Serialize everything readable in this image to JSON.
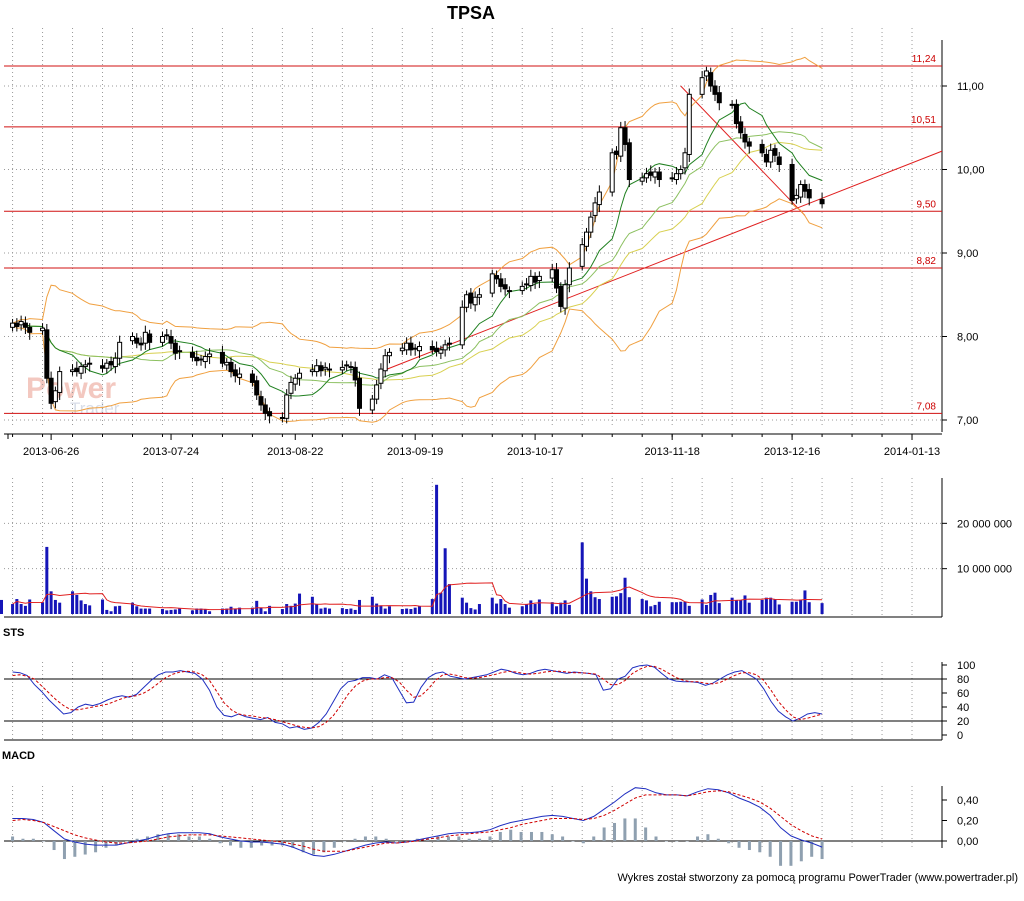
{
  "chart_data": [
    {
      "type": "candlestick",
      "title": "TPSA",
      "y_ticks": [
        "7,00",
        "8,00",
        "9,00",
        "10,00",
        "11,00"
      ],
      "ylim": [
        7.0,
        11.4
      ],
      "x_ticks": [
        "2013-06-26",
        "2013-07-24",
        "2013-08-22",
        "2013-09-19",
        "2013-10-17",
        "2013-11-18",
        "2013-12-16",
        "2014-01-13"
      ],
      "x_start_date": "2013-06-15",
      "x_end_date": "2014-01-20",
      "levels": [
        {
          "label": "11,24",
          "value": 11.24
        },
        {
          "label": "10,51",
          "value": 10.51
        },
        {
          "label": "9,50",
          "value": 9.5
        },
        {
          "label": "8,82",
          "value": 8.82
        },
        {
          "label": "7,08",
          "value": 7.08
        }
      ],
      "trendlines": [
        {
          "from": [
            "2013-09-12",
            7.6
          ],
          "to": [
            "2014-01-20",
            10.22
          ]
        },
        {
          "from": [
            "2013-11-20",
            11.0
          ],
          "to": [
            "2013-12-19",
            9.45
          ]
        }
      ],
      "bollinger": "upper/lower bands",
      "moving_averages": [
        "green",
        "yellow-green"
      ],
      "watermark": [
        "Power",
        "Trader"
      ],
      "grid": true,
      "series": [
        {
          "close": [
            8.16,
            8.12,
            8.18,
            8.11,
            8.05,
            8.1,
            7.5,
            7.2,
            7.35,
            7.58,
            7.6,
            7.58,
            7.64,
            7.66,
            7.67,
            7.62,
            7.68,
            7.66,
            7.74,
            7.93,
            8.0,
            7.92,
            7.9,
            8.05,
            7.93,
            8.0,
            8.02,
            7.92,
            7.8,
            7.83,
            7.75,
            7.71,
            7.72,
            7.76,
            7.79,
            7.68,
            7.69,
            7.58,
            7.53,
            7.55,
            7.45,
            7.3,
            7.18,
            7.08,
            7.05,
            7.02,
            7.3,
            7.45,
            7.5,
            7.56,
            7.6,
            7.65,
            7.59,
            7.63,
            7.6,
            7.63,
            7.66,
            7.63,
            7.48,
            7.14,
            7.25,
            7.42,
            7.61,
            7.77,
            7.81,
            7.86,
            7.92,
            7.84,
            7.85,
            7.88,
            7.84,
            7.82,
            7.84,
            7.9,
            7.92,
            8.35,
            8.5,
            8.4,
            8.47,
            8.5,
            8.75,
            8.69,
            8.6,
            8.57,
            8.55,
            8.6,
            8.63,
            8.72,
            8.65,
            8.72,
            8.8,
            8.58,
            8.36,
            8.62,
            8.82,
            9.1,
            9.25,
            9.43,
            9.6,
            9.73,
            10.2,
            10.18,
            10.5,
            10.3,
            9.88,
            9.9,
            9.95,
            9.93,
            9.97,
            9.88,
            9.9,
            9.95,
            10.0,
            10.2,
            10.9,
            11.1,
            11.18,
            11.0,
            10.9,
            10.8,
            10.78,
            10.55,
            10.44,
            10.33,
            10.28,
            10.2,
            10.09,
            10.23,
            10.17,
            10.06,
            9.63,
            9.69,
            9.82,
            9.74,
            9.66,
            9.59
          ]
        }
      ]
    },
    {
      "type": "bar",
      "ylabel": "",
      "y_ticks": [
        "10 000 000",
        "20 000 000"
      ],
      "ylim": [
        0,
        30000000
      ],
      "moving_average": "red",
      "series": [
        {
          "values": [
            2200000,
            3300000,
            2200000,
            1800000,
            3200000,
            2600000,
            14800000,
            5000000,
            3100000,
            2500000,
            5000000,
            4200000,
            3000000,
            2200000,
            1900000,
            3200000,
            900000,
            600000,
            1700000,
            1800000,
            2500000,
            1700000,
            1200000,
            1200000,
            1200000,
            1100000,
            800000,
            900000,
            1000000,
            1200000,
            800000,
            1200000,
            1200000,
            1000000,
            600000,
            1200000,
            1200000,
            1600000,
            1200000,
            1400000,
            1400000,
            2900000,
            1400000,
            600000,
            1800000,
            1100000,
            2200000,
            1800000,
            2300000,
            4500000,
            3800000,
            2200000,
            1200000,
            1400000,
            1200000,
            1300000,
            1100000,
            1200000,
            900000,
            3100000,
            3800000,
            2300000,
            1900000,
            1200000,
            1700000,
            1100000,
            1200000,
            1100000,
            1400000,
            1700000,
            3300000,
            28500000,
            4700000,
            14500000,
            6600000,
            3600000,
            2500000,
            1300000,
            1000000,
            2200000,
            3600000,
            2300000,
            3300000,
            2200000,
            1400000,
            1700000,
            2100000,
            3000000,
            2200000,
            3200000,
            2600000,
            1700000,
            2500000,
            3000000,
            2000000,
            15800000,
            7800000,
            5000000,
            3700000,
            3300000,
            3800000,
            3900000,
            4600000,
            8000000,
            3700000,
            3300000,
            3000000,
            1700000,
            2000000,
            2700000,
            2600000,
            2600000,
            2700000,
            2700000,
            1800000,
            3200000,
            2000000,
            4200000,
            4700000,
            2400000,
            3600000,
            3000000,
            3100000,
            4100000,
            2500000,
            3100000,
            3600000,
            3600000,
            3200000,
            2100000,
            2700000,
            2700000,
            3200000,
            5200000,
            2600000,
            2400000,
            3100000,
            2800000
          ]
        }
      ]
    },
    {
      "type": "line",
      "name_label": "STS",
      "y_ticks": [
        "0",
        "20",
        "40",
        "60",
        "80",
        "100"
      ],
      "ylim": [
        0,
        100
      ],
      "h_lines": [
        20,
        80
      ],
      "series": [
        {
          "color": "#1f2ec0",
          "values": [
            90,
            89,
            85,
            72,
            62,
            50,
            40,
            30,
            32,
            40,
            44,
            42,
            45,
            50,
            54,
            56,
            54,
            58,
            68,
            78,
            86,
            90,
            90,
            92,
            90,
            88,
            80,
            64,
            40,
            28,
            26,
            30,
            26,
            24,
            22,
            25,
            18,
            16,
            10,
            12,
            8,
            10,
            18,
            30,
            48,
            66,
            76,
            78,
            82,
            82,
            80,
            86,
            82,
            64,
            46,
            47,
            68,
            82,
            88,
            90,
            84,
            82,
            80,
            82,
            84,
            86,
            90,
            94,
            92,
            88,
            86,
            88,
            92,
            94,
            92,
            90,
            88,
            90,
            89,
            88,
            86,
            64,
            66,
            80,
            84,
            96,
            99,
            100,
            97,
            88,
            80,
            77,
            76,
            76,
            75,
            71,
            74,
            80,
            86,
            90,
            92,
            86,
            80,
            66,
            48,
            34,
            26,
            20,
            24,
            30,
            32,
            30
          ]
        },
        {
          "color": "#d00000",
          "dashed": true,
          "values": [
            85,
            86,
            84,
            80,
            70,
            60,
            50,
            42,
            36,
            36,
            38,
            40,
            42,
            44,
            48,
            52,
            55,
            56,
            60,
            66,
            74,
            82,
            87,
            90,
            91,
            90,
            86,
            78,
            62,
            46,
            36,
            30,
            28,
            27,
            25,
            24,
            22,
            19,
            16,
            13,
            11,
            10,
            12,
            18,
            28,
            42,
            58,
            70,
            77,
            80,
            80,
            82,
            82,
            76,
            64,
            54,
            56,
            66,
            78,
            86,
            87,
            85,
            82,
            81,
            82,
            84,
            86,
            89,
            91,
            90,
            88,
            87,
            88,
            90,
            91,
            91,
            90,
            89,
            89,
            88,
            87,
            80,
            72,
            72,
            78,
            88,
            94,
            98,
            98,
            94,
            88,
            82,
            78,
            76,
            76,
            74,
            73,
            75,
            80,
            85,
            89,
            89,
            86,
            78,
            64,
            48,
            36,
            26,
            22,
            24,
            27,
            30
          ]
        }
      ]
    },
    {
      "type": "line",
      "name_label": "MACD",
      "y_ticks": [
        "0,00",
        "0,20",
        "0,40"
      ],
      "ylim": [
        -0.16,
        0.52
      ],
      "histogram": true,
      "series": [
        {
          "color": "#1f2ec0",
          "values": [
            0.22,
            0.22,
            0.21,
            0.18,
            0.1,
            0.02,
            -0.01,
            -0.03,
            -0.04,
            -0.04,
            -0.04,
            -0.02,
            0.0,
            0.02,
            0.05,
            0.07,
            0.08,
            0.08,
            0.08,
            0.07,
            0.04,
            0.02,
            0.0,
            -0.01,
            -0.01,
            -0.02,
            -0.03,
            -0.06,
            -0.1,
            -0.14,
            -0.15,
            -0.13,
            -0.1,
            -0.07,
            -0.04,
            -0.02,
            -0.01,
            -0.02,
            -0.01,
            0.01,
            0.03,
            0.05,
            0.07,
            0.08,
            0.08,
            0.09,
            0.11,
            0.15,
            0.18,
            0.2,
            0.22,
            0.24,
            0.25,
            0.24,
            0.22,
            0.2,
            0.24,
            0.31,
            0.38,
            0.46,
            0.52,
            0.51,
            0.47,
            0.45,
            0.45,
            0.44,
            0.48,
            0.51,
            0.5,
            0.47,
            0.42,
            0.38,
            0.33,
            0.25,
            0.13,
            0.05,
            0.01,
            -0.02,
            -0.06
          ]
        },
        {
          "color": "#d00000",
          "dashed": true,
          "values": [
            0.2,
            0.21,
            0.2,
            0.18,
            0.14,
            0.1,
            0.06,
            0.03,
            0.01,
            -0.01,
            -0.02,
            -0.02,
            -0.01,
            0.0,
            0.02,
            0.04,
            0.05,
            0.06,
            0.06,
            0.06,
            0.05,
            0.04,
            0.03,
            0.02,
            0.01,
            0.0,
            -0.01,
            -0.03,
            -0.05,
            -0.08,
            -0.1,
            -0.1,
            -0.1,
            -0.08,
            -0.06,
            -0.04,
            -0.02,
            -0.02,
            -0.01,
            0.0,
            0.02,
            0.03,
            0.05,
            0.06,
            0.07,
            0.08,
            0.09,
            0.11,
            0.13,
            0.16,
            0.18,
            0.2,
            0.22,
            0.22,
            0.22,
            0.21,
            0.22,
            0.25,
            0.3,
            0.36,
            0.42,
            0.45,
            0.45,
            0.45,
            0.45,
            0.44,
            0.46,
            0.48,
            0.49,
            0.48,
            0.45,
            0.42,
            0.38,
            0.32,
            0.24,
            0.16,
            0.1,
            0.05,
            0.02
          ]
        }
      ]
    }
  ],
  "footer_text": "Wykres został stworzony za pomocą programu PowerTrader (www.powertrader.pl)"
}
